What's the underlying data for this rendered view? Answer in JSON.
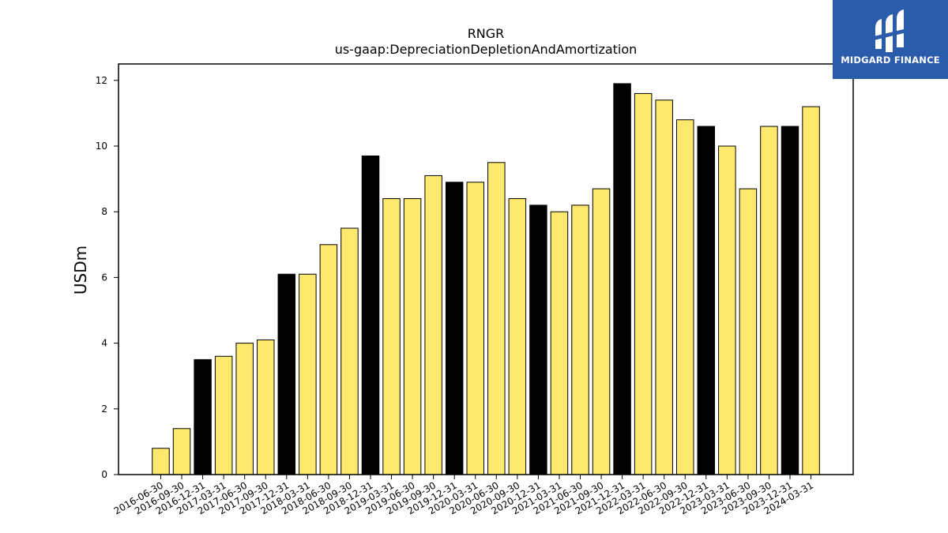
{
  "chart_data": {
    "type": "bar",
    "title": "RNGR",
    "subtitle": "us-gaap:DepreciationDepletionAndAmortization",
    "xlabel": "",
    "ylabel": "USDm",
    "ylim": [
      0,
      12.5
    ],
    "yticks": [
      0,
      2,
      4,
      6,
      8,
      10,
      12
    ],
    "grid": false,
    "colors": {
      "quarter": "#fde96e",
      "year_end": "#000000",
      "edge": "#000000"
    },
    "categories": [
      "2016-06-30",
      "2016-09-30",
      "2016-12-31",
      "2017-03-31",
      "2017-06-30",
      "2017-09-30",
      "2017-12-31",
      "2018-03-31",
      "2018-06-30",
      "2018-09-30",
      "2018-12-31",
      "2019-03-31",
      "2019-06-30",
      "2019-09-30",
      "2019-12-31",
      "2020-03-31",
      "2020-06-30",
      "2020-09-30",
      "2020-12-31",
      "2021-03-31",
      "2021-06-30",
      "2021-09-30",
      "2021-12-31",
      "2022-03-31",
      "2022-06-30",
      "2022-09-30",
      "2022-12-31",
      "2023-03-31",
      "2023-06-30",
      "2023-09-30",
      "2023-12-31",
      "2024-03-31"
    ],
    "values": [
      0.8,
      1.4,
      3.5,
      3.6,
      4.0,
      4.1,
      6.1,
      6.1,
      7.0,
      7.5,
      9.7,
      8.4,
      8.4,
      9.1,
      8.9,
      8.9,
      9.5,
      8.4,
      8.2,
      8.0,
      8.2,
      8.7,
      11.9,
      11.6,
      11.4,
      10.8,
      10.6,
      10.0,
      8.7,
      10.6,
      10.6,
      11.2
    ]
  },
  "logo": {
    "text": "MIDGARD FINANCE",
    "icon": "midgard-logo-icon"
  }
}
